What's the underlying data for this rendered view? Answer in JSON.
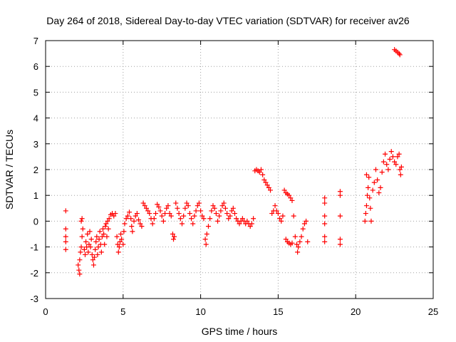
{
  "chart_data": {
    "type": "scatter",
    "title": "Day 264 of 2018, Sidereal Day-to-day VTEC variation (SDTVAR) for receiver av26",
    "xlabel": "GPS time / hours",
    "ylabel": "SDTVAR / TECUs",
    "xlim": [
      0,
      25
    ],
    "ylim": [
      -3,
      7
    ],
    "xticks": [
      0,
      5,
      10,
      15,
      20,
      25
    ],
    "yticks": [
      -3,
      -2,
      -1,
      0,
      1,
      2,
      3,
      4,
      5,
      6,
      7
    ],
    "xtick_labels": [
      "0",
      "5",
      "10",
      "15",
      "20",
      "25"
    ],
    "ytick_labels": [
      "-3",
      "-2",
      "-1",
      "0",
      "1",
      "2",
      "3",
      "4",
      "5",
      "6",
      "7"
    ],
    "grid": true,
    "marker": "+",
    "color": "#ff0000",
    "series": [
      {
        "name": "SDTVAR",
        "points": [
          [
            1.3,
            0.4
          ],
          [
            1.3,
            -0.3
          ],
          [
            1.3,
            -0.6
          ],
          [
            1.3,
            -0.8
          ],
          [
            1.3,
            -1.1
          ],
          [
            2.1,
            -1.7
          ],
          [
            2.15,
            -1.9
          ],
          [
            2.2,
            -2.05
          ],
          [
            2.2,
            -1.5
          ],
          [
            2.25,
            -1.2
          ],
          [
            2.3,
            -1.0
          ],
          [
            2.35,
            -0.6
          ],
          [
            2.3,
            0.0
          ],
          [
            2.35,
            0.1
          ],
          [
            2.4,
            -0.3
          ],
          [
            2.5,
            -1.1
          ],
          [
            2.55,
            -1.3
          ],
          [
            2.6,
            -0.8
          ],
          [
            2.65,
            -1.0
          ],
          [
            2.7,
            -0.5
          ],
          [
            2.75,
            -1.2
          ],
          [
            2.8,
            -0.9
          ],
          [
            2.85,
            -0.4
          ],
          [
            2.9,
            -1.0
          ],
          [
            2.95,
            -0.7
          ],
          [
            3.0,
            -1.3
          ],
          [
            3.05,
            -1.5
          ],
          [
            3.1,
            -1.7
          ],
          [
            3.15,
            -1.4
          ],
          [
            3.2,
            -1.1
          ],
          [
            3.25,
            -0.8
          ],
          [
            3.3,
            -0.6
          ],
          [
            3.35,
            -1.3
          ],
          [
            3.4,
            -1.0
          ],
          [
            3.45,
            -0.7
          ],
          [
            3.5,
            -0.4
          ],
          [
            3.55,
            -0.9
          ],
          [
            3.6,
            -1.2
          ],
          [
            3.65,
            -0.6
          ],
          [
            3.7,
            -0.3
          ],
          [
            3.75,
            -0.5
          ],
          [
            3.8,
            -0.9
          ],
          [
            3.85,
            -0.2
          ],
          [
            3.9,
            -0.1
          ],
          [
            3.95,
            -0.6
          ],
          [
            4.0,
            0.0
          ],
          [
            4.05,
            -0.3
          ],
          [
            4.1,
            0.1
          ],
          [
            4.2,
            0.25
          ],
          [
            4.3,
            0.3
          ],
          [
            4.4,
            0.2
          ],
          [
            4.5,
            0.3
          ],
          [
            4.6,
            -0.6
          ],
          [
            4.65,
            -0.9
          ],
          [
            4.7,
            -1.2
          ],
          [
            4.75,
            -1.0
          ],
          [
            4.8,
            -0.8
          ],
          [
            4.85,
            -0.5
          ],
          [
            4.9,
            -0.7
          ],
          [
            5.0,
            -0.9
          ],
          [
            5.05,
            -0.4
          ],
          [
            5.1,
            -0.1
          ],
          [
            5.2,
            0.1
          ],
          [
            5.3,
            0.2
          ],
          [
            5.4,
            0.35
          ],
          [
            5.5,
            0.1
          ],
          [
            5.55,
            -0.2
          ],
          [
            5.6,
            -0.4
          ],
          [
            5.7,
            0.0
          ],
          [
            5.8,
            0.2
          ],
          [
            5.9,
            0.3
          ],
          [
            6.0,
            0.05
          ],
          [
            6.1,
            -0.1
          ],
          [
            6.2,
            -0.2
          ],
          [
            6.3,
            0.7
          ],
          [
            6.4,
            0.6
          ],
          [
            6.5,
            0.5
          ],
          [
            6.6,
            0.4
          ],
          [
            6.7,
            0.3
          ],
          [
            6.8,
            0.1
          ],
          [
            6.9,
            -0.1
          ],
          [
            7.0,
            0.1
          ],
          [
            7.1,
            0.3
          ],
          [
            7.2,
            0.65
          ],
          [
            7.3,
            0.55
          ],
          [
            7.4,
            0.4
          ],
          [
            7.5,
            0.2
          ],
          [
            7.6,
            0.0
          ],
          [
            7.7,
            0.3
          ],
          [
            7.8,
            0.5
          ],
          [
            7.9,
            0.6
          ],
          [
            8.0,
            0.3
          ],
          [
            8.1,
            0.2
          ],
          [
            8.2,
            -0.5
          ],
          [
            8.25,
            -0.7
          ],
          [
            8.3,
            -0.6
          ],
          [
            8.4,
            0.7
          ],
          [
            8.5,
            0.5
          ],
          [
            8.6,
            0.3
          ],
          [
            8.7,
            0.1
          ],
          [
            8.8,
            -0.1
          ],
          [
            8.9,
            0.2
          ],
          [
            9.0,
            0.5
          ],
          [
            9.1,
            0.7
          ],
          [
            9.2,
            0.6
          ],
          [
            9.3,
            0.3
          ],
          [
            9.4,
            0.1
          ],
          [
            9.5,
            -0.1
          ],
          [
            9.6,
            0.2
          ],
          [
            9.7,
            0.4
          ],
          [
            9.8,
            0.6
          ],
          [
            9.9,
            0.7
          ],
          [
            10.0,
            0.4
          ],
          [
            10.1,
            0.2
          ],
          [
            10.2,
            0.1
          ],
          [
            10.3,
            -0.7
          ],
          [
            10.35,
            -0.9
          ],
          [
            10.4,
            -0.5
          ],
          [
            10.5,
            -0.2
          ],
          [
            10.6,
            0.1
          ],
          [
            10.7,
            0.4
          ],
          [
            10.8,
            0.6
          ],
          [
            10.9,
            0.5
          ],
          [
            11.0,
            0.3
          ],
          [
            11.1,
            0.0
          ],
          [
            11.2,
            0.2
          ],
          [
            11.3,
            0.4
          ],
          [
            11.4,
            0.6
          ],
          [
            11.5,
            0.7
          ],
          [
            11.6,
            0.5
          ],
          [
            11.7,
            0.3
          ],
          [
            11.8,
            0.1
          ],
          [
            11.9,
            0.2
          ],
          [
            12.0,
            0.4
          ],
          [
            12.1,
            0.5
          ],
          [
            12.2,
            0.3
          ],
          [
            12.3,
            0.1
          ],
          [
            12.4,
            0.0
          ],
          [
            12.5,
            -0.1
          ],
          [
            12.6,
            0.0
          ],
          [
            12.7,
            0.1
          ],
          [
            12.8,
            0.0
          ],
          [
            12.9,
            -0.1
          ],
          [
            13.0,
            0.0
          ],
          [
            13.1,
            -0.1
          ],
          [
            13.2,
            -0.2
          ],
          [
            13.3,
            -0.1
          ],
          [
            13.4,
            0.1
          ],
          [
            13.5,
            1.95
          ],
          [
            13.6,
            2.0
          ],
          [
            13.7,
            1.95
          ],
          [
            13.8,
            1.9
          ],
          [
            13.9,
            2.0
          ],
          [
            14.0,
            1.8
          ],
          [
            14.1,
            1.6
          ],
          [
            14.2,
            1.5
          ],
          [
            14.3,
            1.4
          ],
          [
            14.4,
            1.3
          ],
          [
            14.5,
            1.2
          ],
          [
            14.6,
            0.3
          ],
          [
            14.7,
            0.4
          ],
          [
            14.8,
            0.6
          ],
          [
            14.9,
            0.4
          ],
          [
            15.0,
            0.3
          ],
          [
            15.1,
            0.1
          ],
          [
            15.2,
            0.0
          ],
          [
            15.3,
            0.2
          ],
          [
            15.4,
            1.2
          ],
          [
            15.5,
            1.1
          ],
          [
            15.6,
            1.05
          ],
          [
            15.7,
            1.0
          ],
          [
            15.8,
            0.9
          ],
          [
            15.9,
            0.8
          ],
          [
            15.5,
            -0.7
          ],
          [
            15.6,
            -0.8
          ],
          [
            15.7,
            -0.85
          ],
          [
            15.8,
            -0.9
          ],
          [
            15.9,
            -0.85
          ],
          [
            16.0,
            0.2
          ],
          [
            16.1,
            -0.6
          ],
          [
            16.2,
            -0.9
          ],
          [
            16.25,
            -1.2
          ],
          [
            16.3,
            -1.0
          ],
          [
            16.4,
            -0.8
          ],
          [
            16.5,
            -0.6
          ],
          [
            16.6,
            -0.3
          ],
          [
            16.7,
            -0.1
          ],
          [
            16.8,
            0.0
          ],
          [
            16.9,
            -0.8
          ],
          [
            18.0,
            0.9
          ],
          [
            18.0,
            0.7
          ],
          [
            18.0,
            0.2
          ],
          [
            18.0,
            -0.1
          ],
          [
            18.0,
            -0.6
          ],
          [
            18.0,
            -0.8
          ],
          [
            19.0,
            1.15
          ],
          [
            19.0,
            1.0
          ],
          [
            19.0,
            0.2
          ],
          [
            19.0,
            -0.7
          ],
          [
            19.0,
            -0.9
          ],
          [
            20.6,
            0.0
          ],
          [
            20.65,
            0.3
          ],
          [
            20.7,
            0.6
          ],
          [
            20.75,
            1.0
          ],
          [
            20.8,
            1.3
          ],
          [
            20.85,
            1.7
          ],
          [
            20.7,
            1.8
          ],
          [
            20.9,
            0.9
          ],
          [
            20.95,
            0.5
          ],
          [
            21.0,
            0.0
          ],
          [
            21.1,
            1.2
          ],
          [
            21.2,
            1.5
          ],
          [
            21.3,
            2.0
          ],
          [
            21.4,
            1.6
          ],
          [
            21.5,
            1.1
          ],
          [
            21.6,
            1.3
          ],
          [
            21.7,
            1.9
          ],
          [
            21.8,
            2.3
          ],
          [
            21.9,
            2.6
          ],
          [
            22.0,
            2.2
          ],
          [
            22.1,
            2.0
          ],
          [
            22.2,
            2.4
          ],
          [
            22.3,
            2.7
          ],
          [
            22.4,
            2.5
          ],
          [
            22.5,
            2.3
          ],
          [
            22.6,
            2.2
          ],
          [
            22.7,
            2.5
          ],
          [
            22.8,
            2.6
          ],
          [
            22.85,
            2.0
          ],
          [
            22.9,
            1.8
          ],
          [
            22.95,
            2.1
          ],
          [
            22.5,
            6.65
          ],
          [
            22.6,
            6.6
          ],
          [
            22.7,
            6.55
          ],
          [
            22.8,
            6.5
          ],
          [
            22.85,
            6.45
          ]
        ]
      }
    ]
  }
}
